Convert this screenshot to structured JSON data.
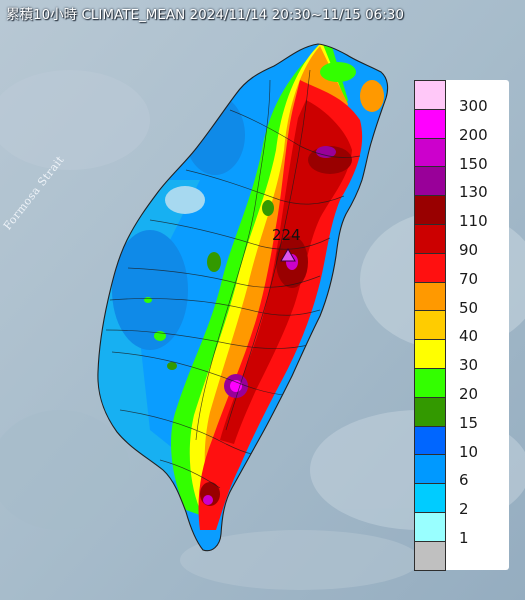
{
  "map": {
    "title": "累積10小時 CLIMATE_MEAN 2024/11/14 20:30~11/15 06:30",
    "strait_label": "Formosa Strait",
    "peak_value": "224"
  },
  "legend": {
    "items": [
      {
        "label": "300",
        "color": "#ffc8f8"
      },
      {
        "label": "200",
        "color": "#ff00ff"
      },
      {
        "label": "150",
        "color": "#cc00cc"
      },
      {
        "label": "130",
        "color": "#990099"
      },
      {
        "label": "110",
        "color": "#990000"
      },
      {
        "label": "90",
        "color": "#cc0000"
      },
      {
        "label": "70",
        "color": "#ff1010"
      },
      {
        "label": "50",
        "color": "#ff9900"
      },
      {
        "label": "40",
        "color": "#ffcc00"
      },
      {
        "label": "30",
        "color": "#ffff00"
      },
      {
        "label": "20",
        "color": "#33ff00"
      },
      {
        "label": "15",
        "color": "#339900"
      },
      {
        "label": "10",
        "color": "#0066ff"
      },
      {
        "label": "6",
        "color": "#0099ff"
      },
      {
        "label": "2",
        "color": "#00ccff"
      },
      {
        "label": "1",
        "color": "#99ffff"
      },
      {
        "label": "",
        "color": "#c0c0c0"
      }
    ]
  }
}
